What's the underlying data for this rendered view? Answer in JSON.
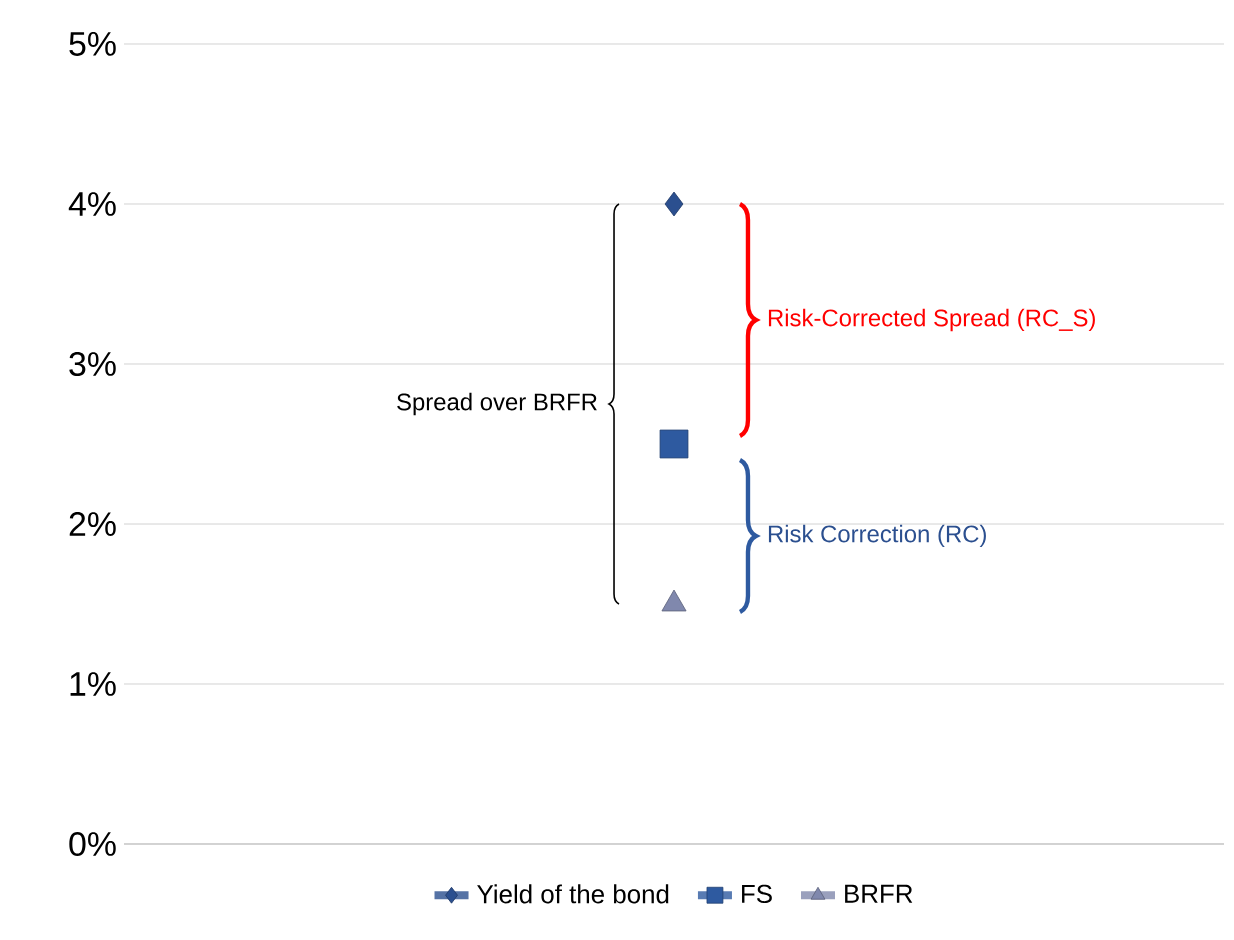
{
  "chart_data": {
    "type": "scatter",
    "categories": [
      null
    ],
    "series": [
      {
        "name": "Yield of the bond",
        "color": "#2b4f8f",
        "marker": "diamond",
        "values": [
          4.0
        ]
      },
      {
        "name": "FS",
        "color": "#2e5aa0",
        "marker": "square",
        "values": [
          2.5
        ]
      },
      {
        "name": "BRFR",
        "color": "#8088ad",
        "marker": "triangle",
        "values": [
          1.5
        ]
      }
    ],
    "ylim": [
      0,
      5
    ],
    "yticks": [
      {
        "value": 0,
        "label": "0%"
      },
      {
        "value": 1,
        "label": "1%"
      },
      {
        "value": 2,
        "label": "2%"
      },
      {
        "value": 3,
        "label": "3%"
      },
      {
        "value": 4,
        "label": "4%"
      },
      {
        "value": 5,
        "label": "5%"
      }
    ],
    "grid": "y",
    "legend": "bottom",
    "annotations": [
      "Spread over BRFR",
      "Risk-Corrected Spread (RC_S)",
      "Risk Correction (RC)"
    ]
  }
}
